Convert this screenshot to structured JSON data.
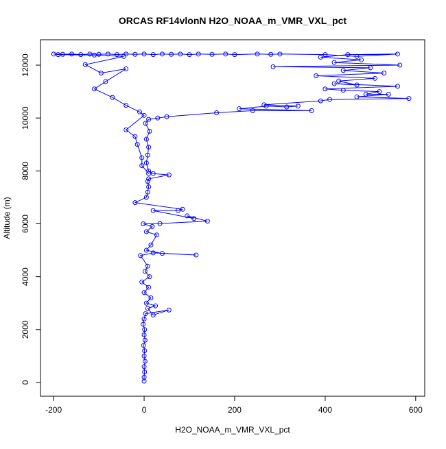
{
  "chart_data": {
    "type": "scatter",
    "connect": true,
    "title": "ORCAS RF14vlonN H2O_NOAA_m_VMR_VXL_pct",
    "x_label": "H2O_NOAA_m_VMR_VXL_pct",
    "y_label": "Altitude (m)",
    "color": "#0000ff",
    "xlim": [
      -229,
      620
    ],
    "ylim": [
      -520,
      12960
    ],
    "xticks": [
      -200,
      0,
      200,
      400,
      600
    ],
    "yticks": [
      0,
      2000,
      4000,
      6000,
      8000,
      10000,
      12000
    ],
    "x": [
      0,
      0,
      1,
      0,
      2,
      0,
      1,
      -1,
      2,
      0,
      1,
      -2,
      0,
      3,
      55,
      20,
      8,
      25,
      5,
      15,
      0,
      10,
      -5,
      12,
      2,
      8,
      -8,
      20,
      115,
      40,
      5,
      15,
      28,
      5,
      18,
      -2,
      35,
      140,
      95,
      110,
      20,
      75,
      85,
      -20,
      5,
      8,
      10,
      8,
      10,
      55,
      20,
      10,
      5,
      8,
      10,
      5,
      12,
      3,
      10,
      30,
      50,
      160,
      240,
      370,
      210,
      270,
      315,
      340,
      265,
      390,
      410,
      585,
      470,
      540,
      490,
      520,
      440,
      400,
      560,
      420,
      470,
      430,
      510,
      380,
      530,
      440,
      500,
      285,
      565,
      420,
      480,
      390,
      450,
      560,
      470,
      400,
      300,
      280,
      250,
      200,
      180,
      150,
      120,
      100,
      80,
      60,
      40,
      20,
      0,
      -20,
      -40,
      -60,
      -80,
      -100,
      -120,
      -140,
      -160,
      -180,
      -200,
      -190,
      -110,
      -45,
      -130,
      -95,
      -40,
      -85,
      -110,
      -70,
      -40,
      -10,
      0,
      -40,
      -20,
      -15,
      -5,
      -5,
      10
    ],
    "values": [
      50,
      200,
      400,
      600,
      800,
      1000,
      1200,
      1400,
      1600,
      1800,
      2000,
      2200,
      2400,
      2600,
      2740,
      2550,
      2800,
      2900,
      3000,
      3200,
      3400,
      3600,
      3800,
      4000,
      4200,
      4400,
      4800,
      4900,
      4820,
      4880,
      5000,
      5200,
      5580,
      5700,
      5900,
      6000,
      6010,
      6100,
      6300,
      6200,
      6500,
      6500,
      6550,
      6800,
      7000,
      7200,
      7400,
      7600,
      7700,
      7850,
      7900,
      8000,
      8300,
      8600,
      8900,
      9200,
      9500,
      9800,
      9950,
      10000,
      10050,
      10200,
      10280,
      10280,
      10350,
      10450,
      10420,
      10450,
      10500,
      10650,
      10700,
      10740,
      10800,
      10900,
      10900,
      11000,
      11050,
      11100,
      11200,
      11300,
      11250,
      11400,
      11500,
      11600,
      11700,
      11800,
      11900,
      11940,
      12000,
      12100,
      12200,
      12300,
      12400,
      12420,
      12330,
      12400,
      12420,
      12410,
      12420,
      12400,
      12420,
      12410,
      12420,
      12400,
      12420,
      12410,
      12420,
      12400,
      12420,
      12410,
      12420,
      12400,
      12420,
      12410,
      12420,
      12400,
      12420,
      12410,
      12420,
      12400,
      12380,
      12330,
      12020,
      11700,
      11860,
      11380,
      11100,
      10780,
      10480,
      10230,
      10100,
      9550,
      9300,
      9000,
      8500,
      8200,
      7900
    ]
  }
}
